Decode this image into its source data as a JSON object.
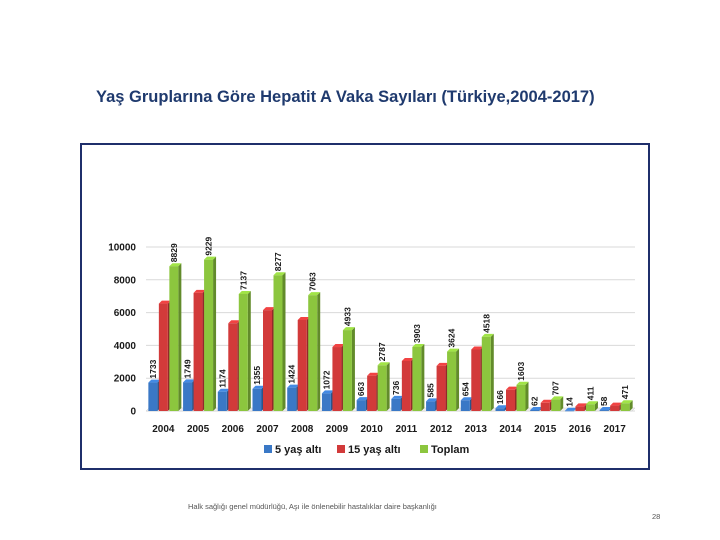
{
  "slide": {
    "title": "Yaş Gruplarına Göre Hepatit A Vaka Sayıları (Türkiye,2004-2017)",
    "footer": "Halk sağlığı genel müdürlüğü, Aşı ile önlenebilir hastalıklar daire başkanlığı",
    "page_number": "28"
  },
  "chart_data": {
    "type": "bar",
    "title": "",
    "xlabel": "",
    "ylabel": "",
    "ylim": [
      0,
      10000
    ],
    "yticks": [
      0,
      2000,
      4000,
      6000,
      8000,
      10000
    ],
    "grid": true,
    "legend_position": "bottom",
    "categories": [
      "2004",
      "2005",
      "2006",
      "2007",
      "2008",
      "2009",
      "2010",
      "2011",
      "2012",
      "2013",
      "2014",
      "2015",
      "2016",
      "2017"
    ],
    "series": [
      {
        "name": "5 yaş altı",
        "color": "#3a78c6",
        "values": [
          1733,
          1749,
          1174,
          1355,
          1424,
          1072,
          663,
          736,
          585,
          654,
          166,
          62,
          14,
          58
        ],
        "labeled": true
      },
      {
        "name": "15 yaş altı",
        "color": "#d23a3a",
        "values": [
          6550,
          7200,
          5350,
          6150,
          5550,
          3900,
          2150,
          3050,
          2750,
          3750,
          1300,
          500,
          280,
          330
        ],
        "labeled": false
      },
      {
        "name": "Toplam",
        "color": "#8cc63e",
        "values": [
          8829,
          9229,
          7137,
          8277,
          7063,
          4933,
          2787,
          3903,
          3624,
          4518,
          1603,
          707,
          411,
          471
        ],
        "labeled": true
      }
    ]
  }
}
